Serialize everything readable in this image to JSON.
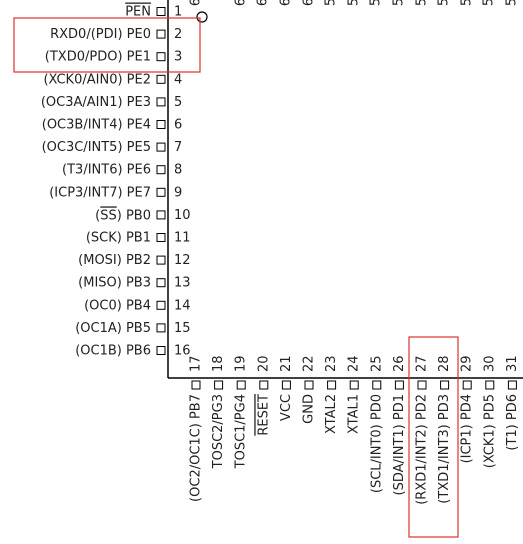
{
  "top_fragments": [
    "6",
    "6",
    "6",
    "6",
    "6",
    "5",
    "5",
    "5",
    "5",
    "5",
    "5",
    "5",
    "5",
    "5"
  ],
  "left_pins": [
    {
      "number": "1",
      "label": "PEN",
      "overline": true
    },
    {
      "number": "2",
      "label": "RXD0/(PDI) PE0"
    },
    {
      "number": "3",
      "label": "(TXD0/PDO) PE1"
    },
    {
      "number": "4",
      "label": "(XCK0/AIN0) PE2"
    },
    {
      "number": "5",
      "label": "(OC3A/AIN1) PE3"
    },
    {
      "number": "6",
      "label": "(OC3B/INT4) PE4"
    },
    {
      "number": "7",
      "label": "(OC3C/INT5) PE5"
    },
    {
      "number": "8",
      "label": "(T3/INT6) PE6"
    },
    {
      "number": "9",
      "label": "(ICP3/INT7) PE7"
    },
    {
      "number": "10",
      "label_parts": [
        "(",
        "SS",
        ") PB0"
      ],
      "overline_part": 1
    },
    {
      "number": "11",
      "label": "(SCK) PB1"
    },
    {
      "number": "12",
      "label": "(MOSI) PB2"
    },
    {
      "number": "13",
      "label": "(MISO) PB3"
    },
    {
      "number": "14",
      "label": "(OC0) PB4"
    },
    {
      "number": "15",
      "label": "(OC1A) PB5"
    },
    {
      "number": "16",
      "label": "(OC1B) PB6"
    }
  ],
  "bottom_pins": [
    {
      "number": "17",
      "label": "(OC2/OC1C) PB7"
    },
    {
      "number": "18",
      "label": "TOSC2/PG3"
    },
    {
      "number": "19",
      "label": "TOSC1/PG4"
    },
    {
      "number": "20",
      "label": "RESET",
      "overline": true
    },
    {
      "number": "21",
      "label": "VCC"
    },
    {
      "number": "22",
      "label": "GND"
    },
    {
      "number": "23",
      "label": "XTAL2"
    },
    {
      "number": "24",
      "label": "XTAL1"
    },
    {
      "number": "25",
      "label": "(SCL/INT0) PD0"
    },
    {
      "number": "26",
      "label": "(SDA/INT1) PD1"
    },
    {
      "number": "27",
      "label": "(RXD1/INT2) PD2"
    },
    {
      "number": "28",
      "label": "(TXD1/INT3) PD3"
    },
    {
      "number": "29",
      "label": "(ICP1) PD4"
    },
    {
      "number": "30",
      "label": "(XCK1) PD5"
    },
    {
      "number": "31",
      "label": "(T1) PD6"
    }
  ]
}
